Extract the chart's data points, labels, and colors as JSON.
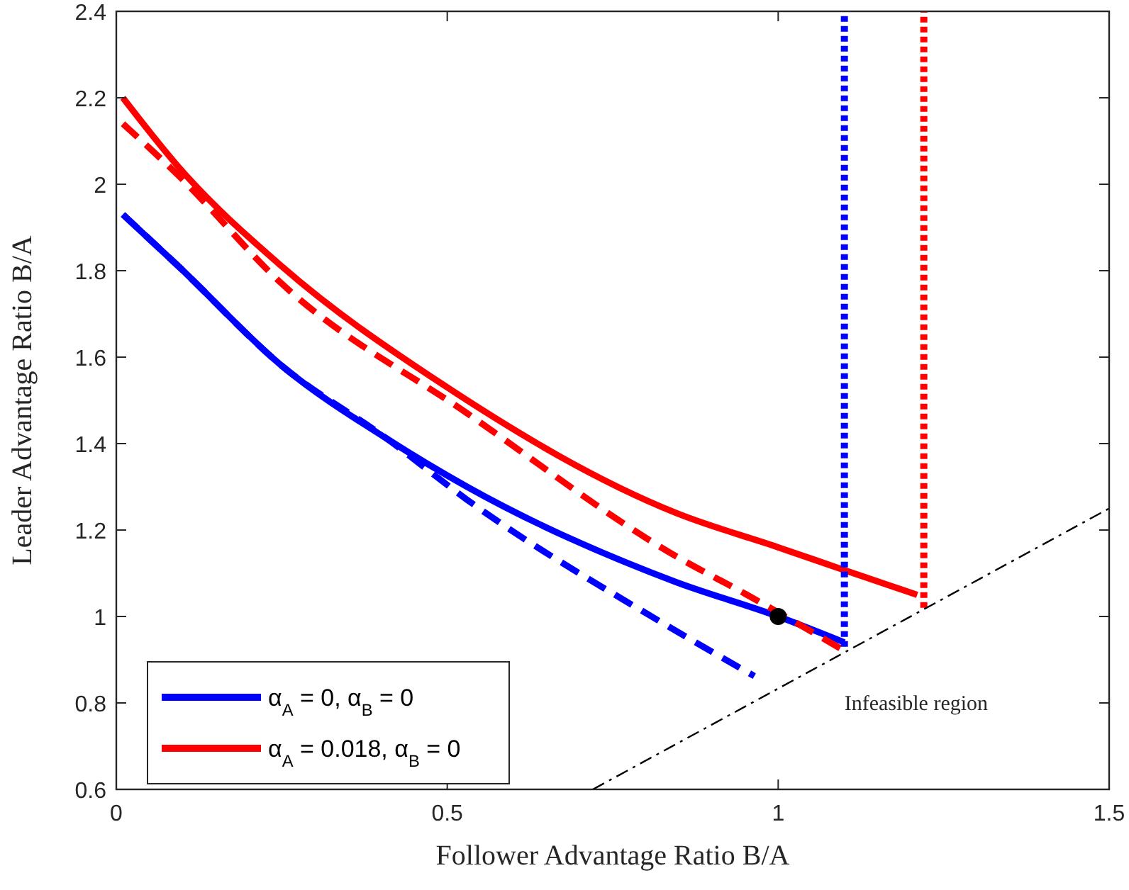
{
  "chart_data": {
    "type": "line",
    "xlabel": "Follower Advantage Ratio B/A",
    "ylabel": "Leader Advantage Ratio B/A",
    "xlim": [
      0,
      1.5
    ],
    "ylim": [
      0.6,
      2.4
    ],
    "xticks": [
      0,
      0.5,
      1,
      1.5
    ],
    "yticks": [
      0.6,
      0.8,
      1,
      1.2,
      1.4,
      1.6,
      1.8,
      2,
      2.2,
      2.4
    ],
    "grid": false,
    "legend": "bottom left",
    "annotations": [
      "Infeasible region"
    ],
    "series": [
      {
        "name": "α$_{A}$ = 0, α$_{B}$ = 0",
        "color": "#0000ff",
        "line_style": "solid",
        "x": [
          0.01,
          0.094,
          0.25,
          0.41,
          0.53,
          0.845,
          1.0,
          1.1
        ],
        "values": [
          1.93,
          1.81,
          1.58,
          1.41,
          1.3,
          1.08,
          1.0,
          0.94
        ]
      },
      {
        "name": "α$_{A}$ = 0.018, α$_{B}$ = 0",
        "color": "#ff0000",
        "line_style": "solid",
        "x": [
          0.01,
          0.094,
          0.25,
          0.49,
          0.845,
          1.0,
          1.095,
          1.21
        ],
        "values": [
          2.2,
          2.04,
          1.81,
          1.54,
          1.24,
          1.16,
          1.11,
          1.05
        ]
      },
      {
        "color": "#0000ff",
        "line_style": "dashed",
        "x": [
          0.01,
          0.094,
          0.25,
          0.41,
          0.53,
          0.823,
          0.964
        ],
        "values": [
          1.93,
          1.81,
          1.58,
          1.41,
          1.27,
          0.987,
          0.862
        ]
      },
      {
        "color": "#ff0000",
        "line_style": "dashed",
        "x": [
          0.01,
          0.094,
          0.25,
          0.53,
          0.845,
          0.953,
          1.095
        ],
        "values": [
          2.14,
          2.02,
          1.77,
          1.47,
          1.14,
          1.05,
          0.925
        ]
      },
      {
        "color": "#0000ff",
        "line_style": "dotted",
        "x": [
          1.1,
          1.1
        ],
        "values": [
          0.93,
          2.4
        ]
      },
      {
        "color": "#ff0000",
        "line_style": "dotted",
        "x": [
          1.22,
          1.22
        ],
        "values": [
          1.02,
          2.4
        ]
      },
      {
        "color": "#000000",
        "line_style": "dashdot",
        "x": [
          0.72,
          1.5
        ],
        "values": [
          0.6,
          1.25
        ]
      },
      {
        "type": "scatter",
        "color": "#000000",
        "marker": "circle",
        "x": [
          1.0
        ],
        "values": [
          1.0
        ]
      }
    ]
  }
}
